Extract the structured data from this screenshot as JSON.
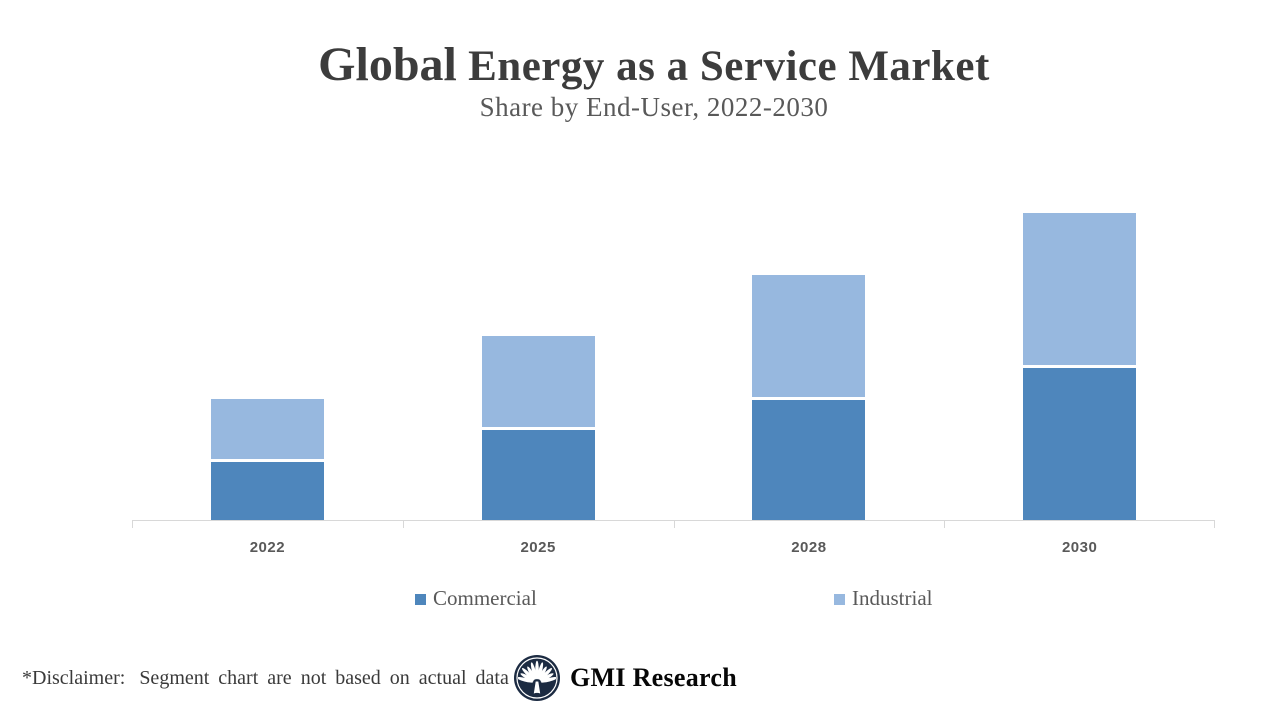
{
  "header": {
    "title_emphasis": "Global",
    "title_rest": " Energy as a Service Market",
    "subtitle": "Share by End-User, 2022-2030"
  },
  "chart_data": {
    "type": "bar",
    "subtype": "stacked",
    "title": "Global Energy as a Service Market",
    "subtitle": "Share by End-User, 2022-2030",
    "categories": [
      "2022",
      "2025",
      "2028",
      "2030"
    ],
    "series": [
      {
        "name": "Commercial",
        "color": "#4E86BC",
        "values": [
          58,
          90,
          120,
          152
        ]
      },
      {
        "name": "Industrial",
        "color": "#97B8DF",
        "values": [
          60,
          91,
          122,
          152
        ]
      }
    ],
    "units": "illustrative relative share (chart not based on actual data)",
    "value_axis_visible": false,
    "gridlines": false,
    "legend_position": "bottom",
    "axis_line_color": "#D8D8D8",
    "tick_label_color": "#595959",
    "segment_gap_color": "#FFFFFF"
  },
  "footer": {
    "disclaimer_label": "*Disclaimer:",
    "disclaimer_text": "Segment chart are not based on actual data",
    "brand_name": "GMI Research",
    "logo_color": "#1C2B42"
  }
}
